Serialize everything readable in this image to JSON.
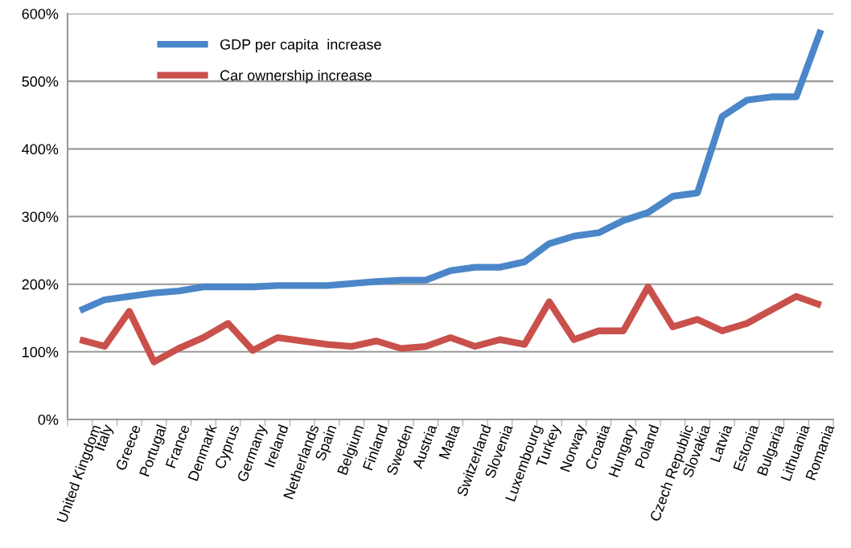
{
  "chart_data": {
    "type": "line",
    "categories": [
      "United Kingdom",
      "Italy",
      "Greece",
      "Portugal",
      "France",
      "Denmark",
      "Cyprus",
      "Germany",
      "Ireland",
      "Netherlands",
      "Spain",
      "Belgium",
      "Finland",
      "Sweden",
      "Austria",
      "Malta",
      "Switzerland",
      "Slovenia",
      "Luxembourg",
      "Turkey",
      "Norway",
      "Croatia",
      "Hungary",
      "Poland",
      "Czech Republic",
      "Slovakia",
      "Latvia",
      "Estonia",
      "Bulgaria",
      "Lithuania",
      "Romania"
    ],
    "series": [
      {
        "name": "GDP per capita  increase",
        "color": "#4a86c8",
        "values": [
          161,
          177,
          182,
          187,
          190,
          196,
          196,
          196,
          198,
          198,
          198,
          201,
          204,
          206,
          206,
          220,
          225,
          225,
          233,
          260,
          271,
          276,
          294,
          306,
          330,
          335,
          448,
          472,
          477,
          477,
          576
        ]
      },
      {
        "name": "Car ownership increase",
        "color": "#c9504b",
        "values": [
          118,
          108,
          160,
          85,
          105,
          121,
          142,
          102,
          121,
          116,
          111,
          108,
          116,
          105,
          108,
          121,
          108,
          118,
          111,
          174,
          118,
          131,
          131,
          196,
          137,
          148,
          131,
          142,
          162,
          182,
          169
        ]
      }
    ],
    "ylim": [
      0,
      600
    ],
    "yticks": [
      {
        "value": 0,
        "label": "0%"
      },
      {
        "value": 100,
        "label": "100%"
      },
      {
        "value": 200,
        "label": "200%"
      },
      {
        "value": 300,
        "label": "300%"
      },
      {
        "value": 400,
        "label": "400%"
      },
      {
        "value": 500,
        "label": "500%"
      },
      {
        "value": 600,
        "label": "600%"
      }
    ],
    "grid": "y",
    "legend": "top left",
    "marker": "none",
    "line_style": "solid"
  }
}
